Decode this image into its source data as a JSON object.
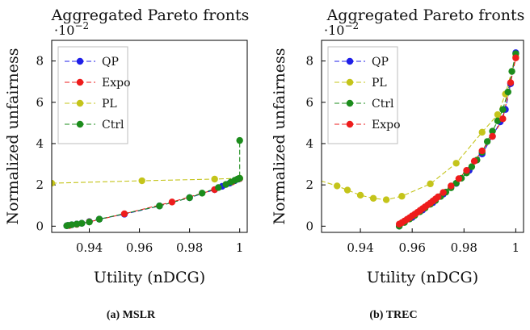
{
  "figure": {
    "multiplier_base": "·10",
    "multiplier_exp": "−2"
  },
  "chart_data": [
    {
      "type": "line",
      "title": "Aggregated Pareto fronts",
      "caption": "(a) MSLR",
      "xlabel": "Utility (nDCG)",
      "ylabel": "Normalized unfairness",
      "y_multiplier": "1e-2",
      "xlim": [
        0.925,
        1.003
      ],
      "ylim": [
        -0.3,
        9.0
      ],
      "xticks": [
        0.94,
        0.96,
        0.98,
        1
      ],
      "xtick_labels": [
        "0.94",
        "0.96",
        "0.98",
        "1"
      ],
      "yticks": [
        0,
        2,
        4,
        6,
        8
      ],
      "ytick_labels": [
        "0",
        "2",
        "4",
        "6",
        "8"
      ],
      "grid": false,
      "legend_position": "top-left",
      "series": [
        {
          "name": "QP",
          "color": "#1f1fe8",
          "x": [
            0.931,
            0.9315,
            0.933,
            0.935,
            0.937,
            0.94,
            0.944,
            0.954,
            0.968,
            0.98,
            0.99,
            0.993,
            0.996,
            0.998,
            0.9995,
            1.0
          ],
          "y": [
            0.02,
            0.04,
            0.07,
            0.1,
            0.14,
            0.22,
            0.34,
            0.58,
            0.98,
            1.38,
            1.77,
            1.93,
            2.08,
            2.2,
            2.28,
            2.3
          ]
        },
        {
          "name": "Expo",
          "color": "#ee1c1c",
          "x": [
            0.932,
            0.935,
            0.94,
            0.954,
            0.973,
            0.99,
            0.997,
            1.0
          ],
          "y": [
            0.03,
            0.09,
            0.21,
            0.6,
            1.17,
            1.77,
            2.14,
            2.3
          ]
        },
        {
          "name": "PL",
          "color": "#c4c41a",
          "x": [
            0.925,
            0.961,
            0.99,
            1.0
          ],
          "y": [
            2.08,
            2.2,
            2.28,
            2.32
          ]
        },
        {
          "name": "Ctrl",
          "color": "#1c8c1c",
          "x": [
            0.931,
            0.9315,
            0.933,
            0.935,
            0.937,
            0.94,
            0.944,
            0.968,
            0.98,
            0.985,
            0.9915,
            0.9945,
            0.9965,
            0.998,
            0.999,
            0.9995,
            1.0,
            1.0
          ],
          "y": [
            0.02,
            0.04,
            0.07,
            0.1,
            0.14,
            0.2,
            0.34,
            0.98,
            1.38,
            1.6,
            1.87,
            2.02,
            2.14,
            2.22,
            2.27,
            2.3,
            2.32,
            4.15
          ]
        }
      ]
    },
    {
      "type": "line",
      "title": "Aggregated Pareto fronts",
      "caption": "(b) TREC",
      "xlabel": "Utility (nDCG)",
      "ylabel": "Normalized unfairness",
      "y_multiplier": "1e-2",
      "xlim": [
        0.925,
        1.003
      ],
      "ylim": [
        -0.3,
        9.0
      ],
      "xticks": [
        0.94,
        0.96,
        0.98,
        1
      ],
      "xtick_labels": [
        "0.94",
        "0.96",
        "0.98",
        "1"
      ],
      "yticks": [
        0,
        2,
        4,
        6,
        8
      ],
      "ytick_labels": [
        "0",
        "2",
        "4",
        "6",
        "8"
      ],
      "grid": false,
      "legend_position": "top-left",
      "series": [
        {
          "name": "QP",
          "color": "#1f1fe8",
          "x": [
            0.955,
            0.957,
            0.96,
            0.964,
            0.968,
            0.972,
            0.977,
            0.982,
            0.987,
            0.991,
            0.994,
            0.996,
            0.998,
            1.0
          ],
          "y": [
            0.0,
            0.2,
            0.42,
            0.78,
            1.14,
            1.55,
            2.07,
            2.7,
            3.5,
            4.35,
            5.05,
            5.65,
            6.9,
            8.4
          ]
        },
        {
          "name": "PL",
          "color": "#c4c41a",
          "x": [
            0.922,
            0.931,
            0.935,
            0.94,
            0.945,
            0.95,
            0.956,
            0.967,
            0.977,
            0.987,
            0.993,
            0.996,
            1.0
          ],
          "y": [
            2.3,
            1.95,
            1.75,
            1.5,
            1.35,
            1.28,
            1.45,
            2.05,
            3.05,
            4.55,
            5.4,
            6.4,
            8.2
          ]
        },
        {
          "name": "Ctrl",
          "color": "#1c8c1c",
          "x": [
            0.955,
            0.957,
            0.959,
            0.961,
            0.963,
            0.965,
            0.967,
            0.969,
            0.971,
            0.973,
            0.975,
            0.977,
            0.979,
            0.981,
            0.983,
            0.985,
            0.987,
            0.989,
            0.991,
            0.993,
            0.995,
            0.997,
            0.9985,
            1.0
          ],
          "y": [
            0.0,
            0.18,
            0.35,
            0.52,
            0.7,
            0.88,
            1.06,
            1.24,
            1.44,
            1.65,
            1.86,
            2.08,
            2.32,
            2.58,
            2.88,
            3.2,
            3.58,
            4.1,
            4.6,
            5.1,
            5.65,
            6.5,
            7.5,
            8.35
          ]
        },
        {
          "name": "Expo",
          "color": "#ee1c1c",
          "x": [
            0.955,
            0.956,
            0.957,
            0.958,
            0.959,
            0.96,
            0.961,
            0.962,
            0.963,
            0.964,
            0.965,
            0.966,
            0.967,
            0.968,
            0.969,
            0.97,
            0.972,
            0.975,
            0.978,
            0.981,
            0.984,
            0.987,
            0.991,
            0.995,
            0.998,
            1.0
          ],
          "y": [
            0.1,
            0.17,
            0.25,
            0.33,
            0.41,
            0.5,
            0.58,
            0.67,
            0.76,
            0.85,
            0.94,
            1.03,
            1.12,
            1.22,
            1.32,
            1.42,
            1.63,
            1.95,
            2.3,
            2.7,
            3.15,
            3.65,
            4.35,
            5.2,
            6.95,
            8.15
          ]
        }
      ]
    }
  ]
}
